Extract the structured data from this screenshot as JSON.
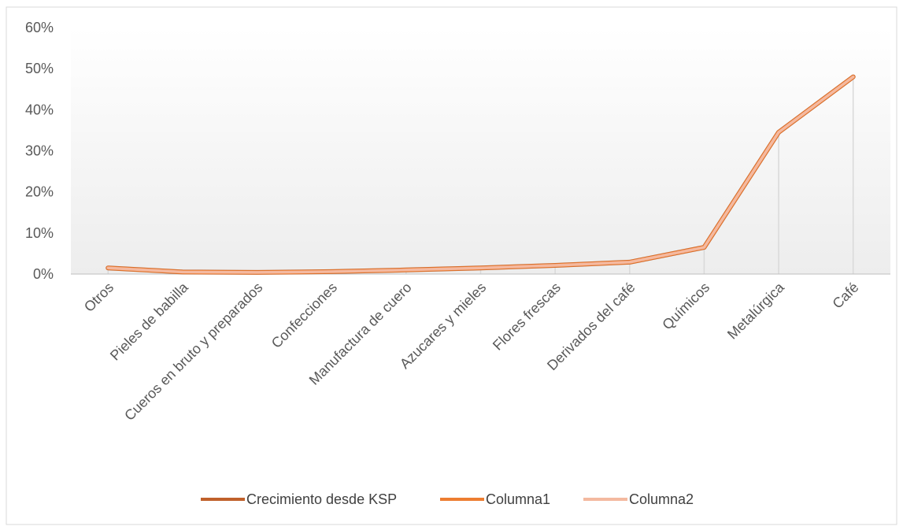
{
  "chart_data": {
    "type": "line",
    "categories": [
      "Otros",
      "Pieles de babilla",
      "Cueros en bruto y preparados",
      "Confecciones",
      "Manufactura de cuero",
      "Azucares y mieles",
      "Flores frescas",
      "Derivados del café",
      "Químicos",
      "Metalúrgica",
      "Café"
    ],
    "series": [
      {
        "name": "Crecimiento desde KSP",
        "color": "#c0612b",
        "values": [
          1.5,
          0.5,
          0.4,
          0.6,
          1.0,
          1.5,
          2.1,
          2.9,
          6.5,
          34.5,
          48.0
        ]
      },
      {
        "name": "Columna1",
        "color": "#ed7d31",
        "values": [
          1.5,
          0.5,
          0.4,
          0.6,
          1.0,
          1.5,
          2.1,
          2.9,
          6.5,
          34.5,
          48.0
        ]
      },
      {
        "name": "Columna2",
        "color": "#f4b9a0",
        "values": [
          1.5,
          0.5,
          0.4,
          0.6,
          1.0,
          1.5,
          2.1,
          2.9,
          6.5,
          34.5,
          48.0
        ]
      }
    ],
    "ylim": [
      0,
      60
    ],
    "yticks": [
      0,
      10,
      20,
      30,
      40,
      50,
      60
    ],
    "ytick_labels": [
      "0%",
      "10%",
      "20%",
      "30%",
      "40%",
      "50%",
      "60%"
    ],
    "title": "",
    "xlabel": "",
    "ylabel": "",
    "grid": false,
    "drop_lines": true,
    "legend_position": "bottom"
  }
}
